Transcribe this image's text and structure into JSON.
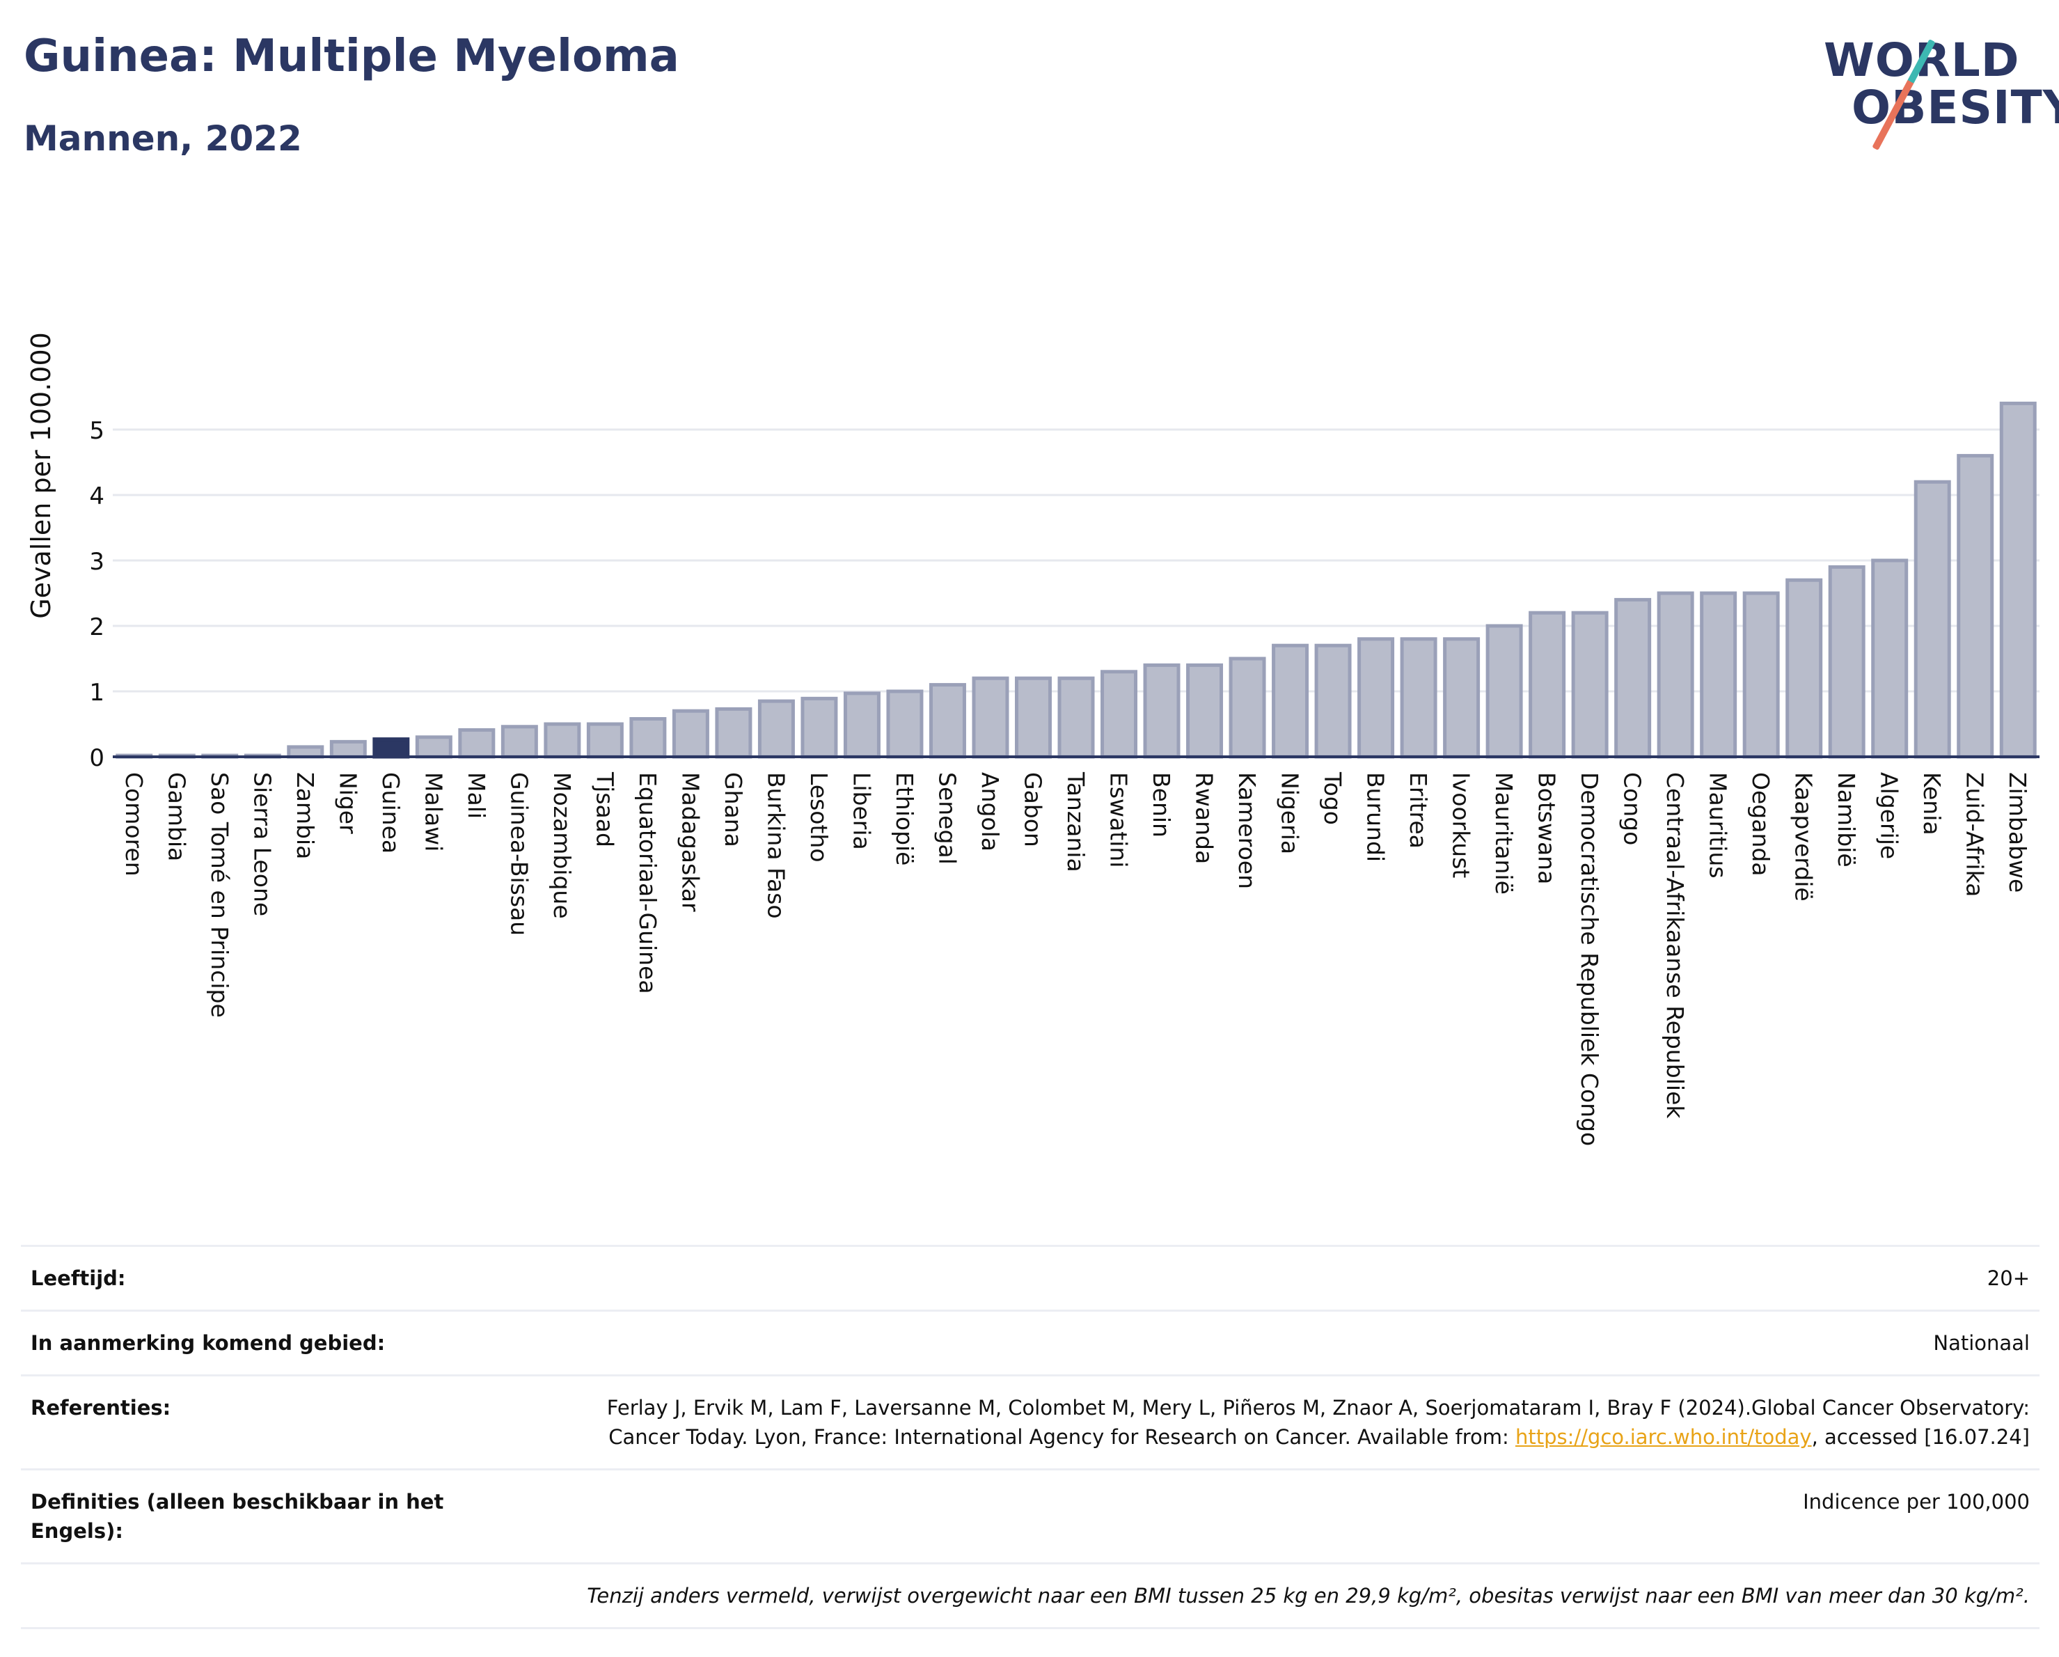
{
  "title": "Guinea: Multiple Myeloma",
  "subtitle": "Mannen, 2022",
  "logo": {
    "line1": "WORLD",
    "line2": "OBESITY"
  },
  "colors": {
    "bar": "#b8bccb",
    "bar_stroke": "#9aa0b8",
    "highlight": "#2b3763",
    "text": "#2b3763"
  },
  "chart_data": {
    "type": "bar",
    "ylabel": "Gevallen per 100.000",
    "xlabel": "",
    "ylim": [
      0,
      5.5
    ],
    "yticks": [
      0,
      1,
      2,
      3,
      4,
      5
    ],
    "grid": true,
    "highlight": "Guinea",
    "categories": [
      "Comoren",
      "Gambia",
      "Sao Tomé en Principe",
      "Sierra Leone",
      "Zambia",
      "Niger",
      "Guinea",
      "Malawi",
      "Mali",
      "Guinea-Bissau",
      "Mozambique",
      "Tjsaad",
      "Equatoriaal-Guinea",
      "Madagaskar",
      "Ghana",
      "Burkina Faso",
      "Lesotho",
      "Liberia",
      "Ethiopië",
      "Senegal",
      "Angola",
      "Gabon",
      "Tanzania",
      "Eswatini",
      "Benin",
      "Rwanda",
      "Kameroen",
      "Nigeria",
      "Togo",
      "Burundi",
      "Eritrea",
      "Ivoorkust",
      "Mauritanië",
      "Botswana",
      "Democratische Republiek Congo",
      "Congo",
      "Centraal-Afrikaanse Republiek",
      "Mauritius",
      "Oeganda",
      "Kaapverdië",
      "Namibië",
      "Algerije",
      "Kenia",
      "Zuid-Afrika",
      "Zimbabwe"
    ],
    "values": [
      0.02,
      0.02,
      0.02,
      0.02,
      0.15,
      0.23,
      0.27,
      0.3,
      0.41,
      0.46,
      0.5,
      0.5,
      0.58,
      0.7,
      0.73,
      0.85,
      0.89,
      0.97,
      1.0,
      1.1,
      1.2,
      1.2,
      1.2,
      1.3,
      1.4,
      1.4,
      1.5,
      1.7,
      1.7,
      1.8,
      1.8,
      1.8,
      2.0,
      2.2,
      2.2,
      2.4,
      2.5,
      2.5,
      2.5,
      2.7,
      2.9,
      3.0,
      4.2,
      4.6,
      5.4
    ]
  },
  "info": {
    "age_label": "Leeftijd:",
    "age_value": "20+",
    "area_label": "In aanmerking komend gebied:",
    "area_value": "Nationaal",
    "refs_label": "Referenties:",
    "refs_text1": "Ferlay J, Ervik M, Lam F, Laversanne M, Colombet M, Mery L, Piñeros M, Znaor A, Soerjomataram I, Bray F (2024).Global Cancer Observatory: Cancer Today. Lyon, France: International Agency for Research on Cancer. Available from: ",
    "refs_link": "https://gco.iarc.who.int/today",
    "refs_text2": ", accessed [16.07.24]",
    "def_label": "Definities (alleen beschikbaar in het Engels):",
    "def_value": "Indicence per 100,000",
    "note": "Tenzij anders vermeld, verwijst overgewicht naar een BMI tussen 25 kg en 29,9 kg/m², obesitas verwijst naar een BMI van meer dan 30 kg/m²."
  }
}
